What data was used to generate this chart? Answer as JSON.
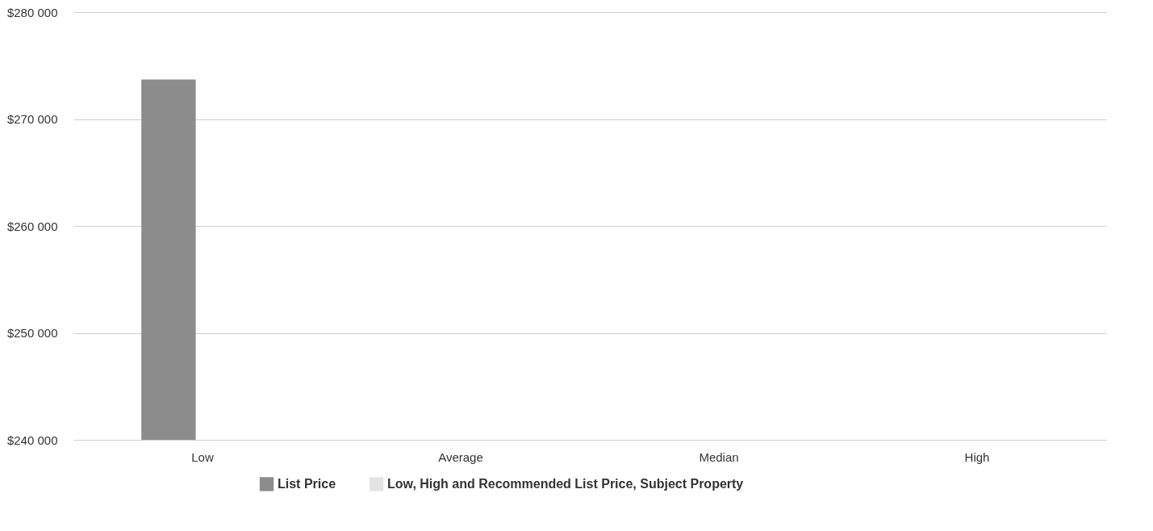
{
  "chart_data": {
    "type": "bar",
    "categories": [
      "Low",
      "Average",
      "Median",
      "High"
    ],
    "series": [
      {
        "name": "List Price",
        "color": "#8c8c8c",
        "values": [
          273700,
          null,
          null,
          null
        ]
      },
      {
        "name": "Low, High and Recommended List Price, Subject Property",
        "color": "#e3e3e3",
        "values": [
          null,
          null,
          null,
          null
        ]
      }
    ],
    "ylim": [
      240000,
      280000
    ],
    "yticks": [
      {
        "value": 240000,
        "label": "$240 000"
      },
      {
        "value": 250000,
        "label": "$250 000"
      },
      {
        "value": 260000,
        "label": "$260 000"
      },
      {
        "value": 270000,
        "label": "$270 000"
      },
      {
        "value": 280000,
        "label": "$280 000"
      }
    ],
    "grid": "y",
    "legend": "bottom"
  }
}
